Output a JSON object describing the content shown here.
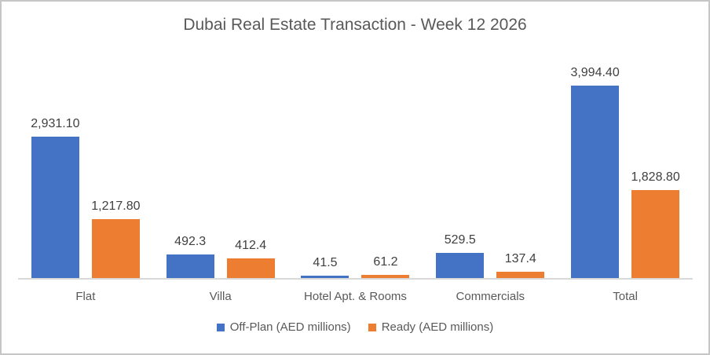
{
  "chart_data": {
    "type": "bar",
    "title": "Dubai Real Estate Transaction - Week 12 2026",
    "categories": [
      "Flat",
      "Villa",
      "Hotel Apt. & Rooms",
      "Commercials",
      "Total"
    ],
    "series": [
      {
        "name": "Off-Plan (AED millions)",
        "color": "#4472C4",
        "values": [
          2931.1,
          492.3,
          41.5,
          529.5,
          3994.4
        ],
        "labels": [
          "2,931.10",
          "492.3",
          "41.5",
          "529.5",
          "3,994.40"
        ]
      },
      {
        "name": "Ready (AED millions)",
        "color": "#ED7D31",
        "values": [
          1217.8,
          412.4,
          61.2,
          137.4,
          1828.8
        ],
        "labels": [
          "1,217.80",
          "412.4",
          "61.2",
          "137.4",
          "1,828.80"
        ]
      }
    ],
    "legend_position": "bottom",
    "grid": false,
    "y_axis_visible": false,
    "ylim": [
      0,
      4000
    ],
    "colors": {
      "title_text": "#595959",
      "data_label_text": "#404040",
      "axis_label_text": "#595959",
      "axis_line": "#D9D9D9",
      "frame_border": "#C6C6C6",
      "background": "#FFFFFF"
    }
  }
}
